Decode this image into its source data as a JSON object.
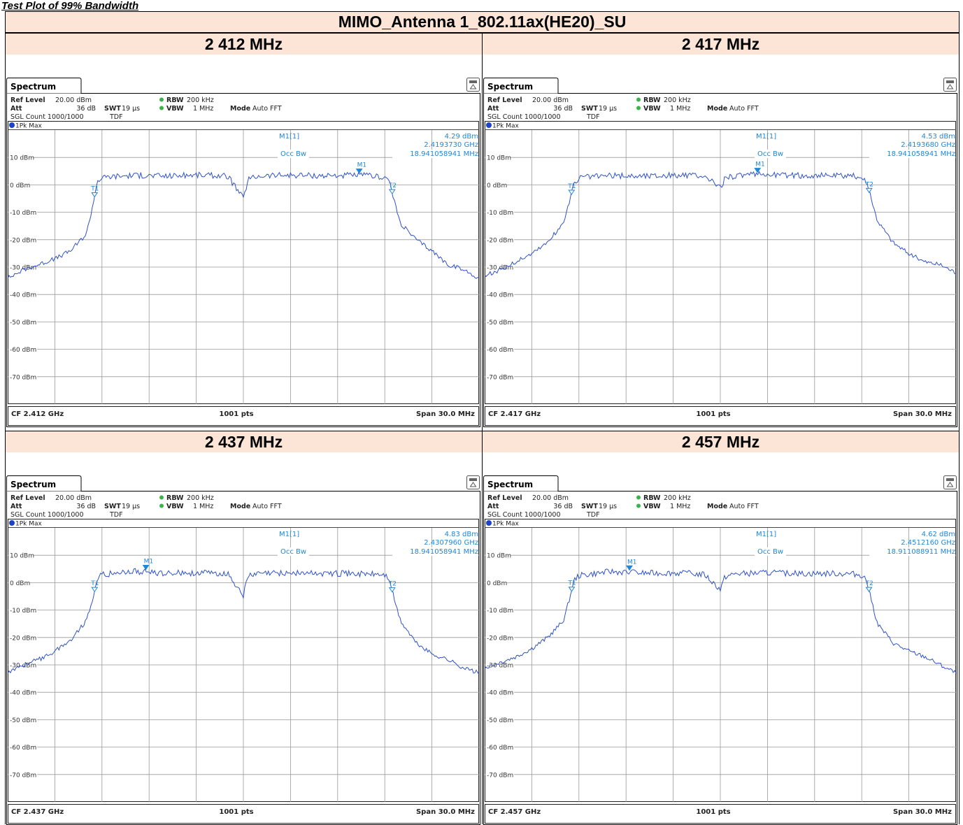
{
  "header": {
    "title": "Test Plot of 99% Bandwidth"
  },
  "table": {
    "title": "MIMO_Antenna 1_802.11ax(HE20)_SU"
  },
  "common": {
    "tab_label": "Spectrum",
    "ref_level_label": "Ref Level",
    "ref_level_value": "20.00 dBm",
    "att_label": "Att",
    "att_value": "36 dB",
    "swt_label": "SWT",
    "swt_value": "19 µs",
    "rbw_label": "RBW",
    "rbw_value": "200 kHz",
    "vbw_label": "VBW",
    "vbw_value": "1 MHz",
    "mode_label": "Mode",
    "mode_value": "Auto FFT",
    "sgl_count": "SGL Count 1000/1000",
    "tdf": "TDF",
    "trace_label": "1Pk Max",
    "marker_title": "M1[1]",
    "occbw_label": "Occ Bw",
    "pts_label": "1001 pts",
    "span_label": "Span 30.0 MHz",
    "y_tick_labels": [
      "10 dBm",
      "0 dBm",
      "-10 dBm",
      "-20 dBm",
      "-30 dBm",
      "-40 dBm",
      "-50 dBm",
      "-60 dBm",
      "-70 dBm"
    ],
    "accent_color": "#1f87d6",
    "trace_color": "#2f52c8",
    "band_color": "#fce4d6"
  },
  "chart_data": [
    {
      "type": "line",
      "title": "2 412 MHz",
      "cf_label": "CF 2.412 GHz",
      "marker_level": "4.29 dBm",
      "marker_freq": "2.4193730 GHz",
      "occ_bw": "18.941058941 MHz",
      "center_freq_ghz": 2.412,
      "span_mhz": 30.0,
      "ylim": [
        -80,
        20
      ],
      "ref_level_dbm": 20,
      "m1_freq_ghz": 2.419373,
      "m1_level_dbm": 4.29,
      "t1_freq_ghz": 2.40253,
      "t2_freq_ghz": 2.42147,
      "x_mhz_offset": [
        -15,
        -14,
        -13,
        -12,
        -11,
        -10,
        -9.6,
        -9.3,
        -9.0,
        -8.5,
        -7,
        -5,
        -3,
        -1,
        0,
        0.3,
        1,
        3,
        5,
        7,
        8.5,
        9.0,
        9.3,
        9.6,
        10,
        11,
        12,
        13,
        14,
        15
      ],
      "y_dbm": [
        -34,
        -31,
        -29,
        -27,
        -24,
        -18,
        -8,
        1.5,
        2.5,
        3,
        3.5,
        3.2,
        3.6,
        3.2,
        -5,
        2,
        3.3,
        3.6,
        3.4,
        3.5,
        3.2,
        2.8,
        1.5,
        -6,
        -14,
        -20,
        -24,
        -29,
        -31,
        -34
      ]
    },
    {
      "type": "line",
      "title": "2 417 MHz",
      "cf_label": "CF 2.417 GHz",
      "marker_level": "4.53 dBm",
      "marker_freq": "2.4193680 GHz",
      "occ_bw": "18.941058941 MHz",
      "center_freq_ghz": 2.417,
      "span_mhz": 30.0,
      "ylim": [
        -80,
        20
      ],
      "ref_level_dbm": 20,
      "m1_freq_ghz": 2.419368,
      "m1_level_dbm": 4.53,
      "t1_freq_ghz": 2.40753,
      "t2_freq_ghz": 2.42647,
      "x_mhz_offset": [
        -15,
        -14,
        -13,
        -12,
        -11,
        -10,
        -9.6,
        -9.3,
        -9.0,
        -8.5,
        -7,
        -5,
        -3,
        -1,
        0,
        0.3,
        1,
        3,
        5,
        7,
        8.5,
        9.0,
        9.3,
        9.6,
        10,
        11,
        12,
        13,
        14,
        15
      ],
      "y_dbm": [
        -33,
        -31,
        -28,
        -25,
        -21,
        -14,
        -6,
        1,
        2.5,
        3,
        3.4,
        3.3,
        3.6,
        3.0,
        -1,
        2.2,
        3.4,
        3.9,
        3.4,
        3.3,
        3.2,
        2.8,
        1.2,
        -5,
        -13,
        -21,
        -25,
        -28,
        -29,
        -32
      ]
    },
    {
      "type": "line",
      "title": "2 437 MHz",
      "cf_label": "CF 2.437 GHz",
      "marker_level": "4.83 dBm",
      "marker_freq": "2.4307960 GHz",
      "occ_bw": "18.941058941 MHz",
      "center_freq_ghz": 2.437,
      "span_mhz": 30.0,
      "ylim": [
        -80,
        20
      ],
      "ref_level_dbm": 20,
      "m1_freq_ghz": 2.430796,
      "m1_level_dbm": 4.83,
      "t1_freq_ghz": 2.42753,
      "t2_freq_ghz": 2.44647,
      "x_mhz_offset": [
        -15,
        -14,
        -13,
        -12,
        -11,
        -10,
        -9.6,
        -9.3,
        -9.0,
        -8.5,
        -7,
        -5,
        -3,
        -1,
        0,
        0.3,
        1,
        3,
        5,
        7,
        8.5,
        9.0,
        9.3,
        9.6,
        10,
        11,
        12,
        13,
        14,
        15
      ],
      "y_dbm": [
        -33,
        -30,
        -28,
        -25,
        -21,
        -14,
        -6,
        1.5,
        2.8,
        3.2,
        4.2,
        3.4,
        3.6,
        3.3,
        -4.5,
        2.4,
        3.3,
        3.6,
        3.4,
        3.3,
        3.1,
        2.8,
        1.2,
        -6,
        -14,
        -22,
        -26,
        -28,
        -31,
        -33
      ]
    },
    {
      "type": "line",
      "title": "2 457 MHz",
      "cf_label": "CF 2.457 GHz",
      "marker_level": "4.62 dBm",
      "marker_freq": "2.4512160 GHz",
      "occ_bw": "18.911088911 MHz",
      "center_freq_ghz": 2.457,
      "span_mhz": 30.0,
      "ylim": [
        -80,
        20
      ],
      "ref_level_dbm": 20,
      "m1_freq_ghz": 2.451216,
      "m1_level_dbm": 4.62,
      "t1_freq_ghz": 2.44754,
      "t2_freq_ghz": 2.46646,
      "x_mhz_offset": [
        -15,
        -14,
        -13,
        -12,
        -11,
        -10,
        -9.6,
        -9.3,
        -9.0,
        -8.5,
        -7,
        -5,
        -3,
        -1,
        0,
        0.3,
        1,
        3,
        5,
        7,
        8.5,
        9.0,
        9.3,
        9.6,
        10,
        11,
        12,
        13,
        14,
        15
      ],
      "y_dbm": [
        -31,
        -29,
        -27,
        -24,
        -20,
        -14,
        -6,
        1.2,
        2.6,
        3,
        4.1,
        3.5,
        3.6,
        3.0,
        -2.5,
        2.2,
        3.3,
        3.6,
        3.3,
        3.4,
        3.2,
        2.8,
        1.0,
        -6,
        -15,
        -22,
        -25,
        -27,
        -30,
        -33
      ]
    }
  ]
}
